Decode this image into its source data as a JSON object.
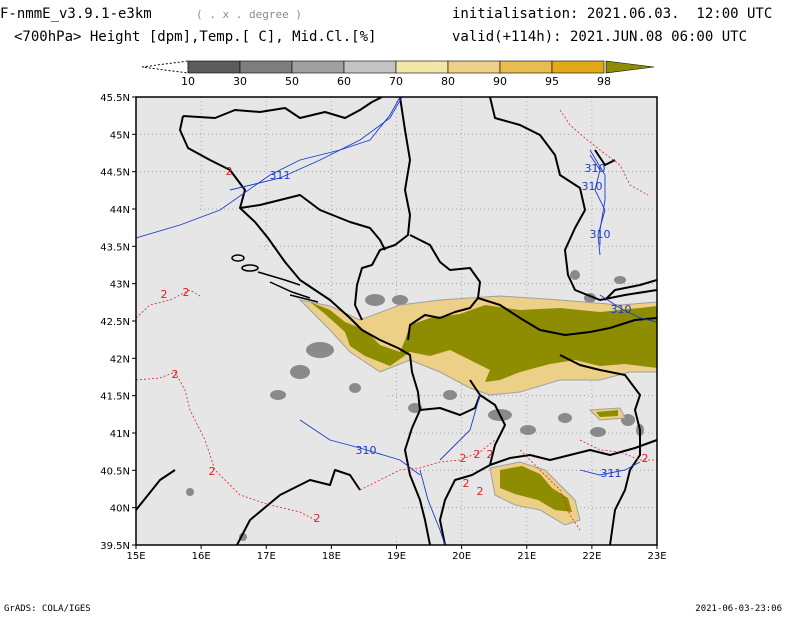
{
  "header": {
    "model": "F-nmmE_v3.9.1-e3km",
    "grid": "( . x . degree )",
    "field": "<700hPa> Height [dpm],Temp.[ C], Mid.Cl.[%]",
    "initialisation": "initialisation: 2021.06.03.  12:00 UTC",
    "valid": "valid(+114h): 2021.JUN.08 06:00 UTC"
  },
  "colorbar": {
    "labels": [
      "10",
      "30",
      "50",
      "60",
      "70",
      "80",
      "90",
      "95",
      "98"
    ],
    "colors": [
      "#5c5c5c",
      "#7e7e7e",
      "#a0a0a0",
      "#c4c4c4",
      "#efe8a8",
      "#ecd088",
      "#e8bc50",
      "#e2a818",
      "#8e8c00"
    ]
  },
  "map": {
    "background": "#e6e6e6",
    "cloud_high_color": "#8e8c00",
    "contour_height_color": "#1a3ccc",
    "contour_temp_color": "#e02020",
    "x_ticks": [
      "15E",
      "16E",
      "17E",
      "18E",
      "19E",
      "20E",
      "21E",
      "22E",
      "23E"
    ],
    "y_ticks": [
      "45.5N",
      "45N",
      "44.5N",
      "44N",
      "43.5N",
      "43N",
      "42.5N",
      "42N",
      "41.5N",
      "41N",
      "40.5N",
      "40N",
      "39.5N"
    ],
    "height_labels": [
      "311",
      "310",
      "310",
      "310",
      "310",
      "310",
      "311"
    ],
    "temp_labels": [
      "2",
      "2",
      "2",
      "2",
      "2",
      "2",
      "2",
      "2",
      "2",
      "2",
      "2",
      "2"
    ]
  },
  "footer": {
    "left": "GrADS: COLA/IGES",
    "right": "2021-06-03-23:06"
  }
}
